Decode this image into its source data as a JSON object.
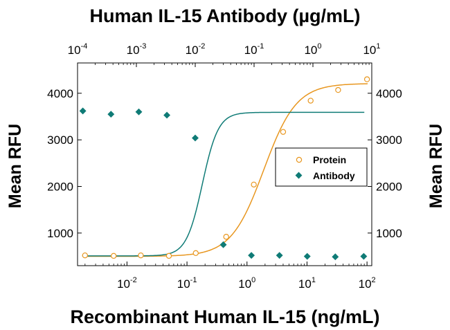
{
  "chart_data": {
    "type": "scatter",
    "title": "Human IL-15 Antibody (µg/mL)",
    "xlabel": "Recombinant Human IL-15 (ng/mL)",
    "ylabel_left": "Mean RFU",
    "ylabel_right": "Mean RFU",
    "x_scale": "log",
    "xlim": [
      0.0015,
      120
    ],
    "x2_scale": "log",
    "x2lim": [
      0.0001,
      10
    ],
    "ylim": [
      300,
      4650
    ],
    "bottom_ticks": [
      {
        "value": 0.01,
        "base": "10",
        "exp": "-2"
      },
      {
        "value": 0.1,
        "base": "10",
        "exp": "-1"
      },
      {
        "value": 1,
        "base": "10",
        "exp": "0"
      },
      {
        "value": 10,
        "base": "10",
        "exp": "1"
      },
      {
        "value": 100,
        "base": "10",
        "exp": "2"
      }
    ],
    "top_ticks": [
      {
        "value": 0.0001,
        "base": "10",
        "exp": "-4"
      },
      {
        "value": 0.001,
        "base": "10",
        "exp": "-3"
      },
      {
        "value": 0.01,
        "base": "10",
        "exp": "-2"
      },
      {
        "value": 0.1,
        "base": "10",
        "exp": "-1"
      },
      {
        "value": 1,
        "base": "10",
        "exp": "0"
      },
      {
        "value": 10,
        "base": "10",
        "exp": "1"
      }
    ],
    "y_ticks": [
      {
        "value": 1000,
        "label": "1000"
      },
      {
        "value": 2000,
        "label": "2000"
      },
      {
        "value": 3000,
        "label": "3000"
      },
      {
        "value": 4000,
        "label": "4000"
      }
    ],
    "legend": {
      "position": "right"
    },
    "colors": {
      "protein": "#e8961e",
      "antibody": "#0f7b76"
    },
    "series": [
      {
        "name": "Protein",
        "axis": "bottom",
        "marker": "open-circle",
        "x": [
          0.002,
          0.006,
          0.017,
          0.05,
          0.14,
          0.45,
          1.3,
          4,
          11.5,
          33,
          100
        ],
        "y": [
          520,
          510,
          520,
          510,
          570,
          920,
          2040,
          3170,
          3840,
          4070,
          4300
        ],
        "fit": {
          "bottom": 500,
          "top": 4210,
          "ec50": 1.9,
          "hill": 1.6
        }
      },
      {
        "name": "Antibody",
        "axis": "top",
        "marker": "filled-diamond",
        "x": [
          0.000123,
          0.00037,
          0.0011,
          0.0033,
          0.01,
          0.03,
          0.09,
          0.27,
          0.8,
          2.4,
          7.3
        ],
        "y": [
          3620,
          3550,
          3600,
          3530,
          3040,
          750,
          520,
          520,
          500,
          490,
          500
        ],
        "fit": {
          "bottom": 510,
          "top": 3590,
          "ec50": 0.0132,
          "hill": 3.2
        }
      }
    ]
  }
}
